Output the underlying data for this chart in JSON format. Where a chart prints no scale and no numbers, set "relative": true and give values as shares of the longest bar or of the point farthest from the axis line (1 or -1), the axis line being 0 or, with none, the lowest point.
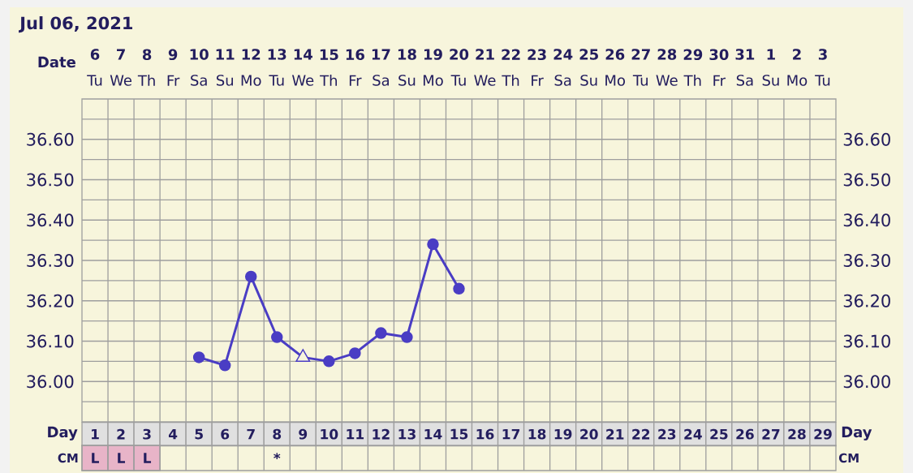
{
  "chart_data": [
    {
      "type": "line",
      "title": "Jul 06, 2021",
      "categories": [
        "1",
        "2",
        "3",
        "4",
        "5",
        "6",
        "7",
        "8",
        "9",
        "10",
        "11",
        "12",
        "13",
        "14",
        "15",
        "16",
        "17",
        "18",
        "19",
        "20",
        "21",
        "22",
        "23",
        "24",
        "25",
        "26",
        "27",
        "28",
        "29"
      ],
      "xlabel": "Day",
      "x2label": "Date",
      "x2lim": [
        "2021-07-05T12:00",
        "2021-08-03T12:00"
      ],
      "x2ticks": [
        {
          "value": "2021-07-06",
          "label": "**6** Tu"
        },
        {
          "value": "2021-07-07",
          "label": "**7** We"
        },
        {
          "value": "2021-07-08",
          "label": "**8** Th"
        },
        {
          "value": "2021-07-09",
          "label": "**9** Fr"
        },
        {
          "value": "2021-07-10",
          "label": "**10** Sa"
        },
        {
          "value": "2021-07-11",
          "label": "**11** Su"
        },
        {
          "value": "2021-07-12",
          "label": "**12** Mo"
        },
        {
          "value": "2021-07-13",
          "label": "**13** Tu"
        },
        {
          "value": "2021-07-14",
          "label": "**14** We"
        },
        {
          "value": "2021-07-15",
          "label": "**15** Th"
        },
        {
          "value": "2021-07-16",
          "label": "**16** Fr"
        },
        {
          "value": "2021-07-17",
          "label": "**17** Sa"
        },
        {
          "value": "2021-07-18",
          "label": "**18** Su"
        },
        {
          "value": "2021-07-19",
          "label": "**19** Mo"
        },
        {
          "value": "2021-07-20",
          "label": "**20** Tu"
        },
        {
          "value": "2021-07-21",
          "label": "**21** We"
        },
        {
          "value": "2021-07-22",
          "label": "**22** Th"
        },
        {
          "value": "2021-07-23",
          "label": "**23** Fr"
        },
        {
          "value": "2021-07-24",
          "label": "**24** Sa"
        },
        {
          "value": "2021-07-25",
          "label": "**25** Su"
        },
        {
          "value": "2021-07-26",
          "label": "**26** Mo"
        },
        {
          "value": "2021-07-27",
          "label": "**27** Tu"
        },
        {
          "value": "2021-07-28",
          "label": "**28** We"
        },
        {
          "value": "2021-07-29",
          "label": "**29** Th"
        },
        {
          "value": "2021-07-30",
          "label": "**30** Fr"
        },
        {
          "value": "2021-07-31",
          "label": "**31** Sa"
        },
        {
          "value": "2021-08-01",
          "label": "**1** Su"
        },
        {
          "value": "2021-08-02",
          "label": "**2** Mo"
        },
        {
          "value": "2021-08-03",
          "label": "**3** Tu"
        }
      ],
      "ylim": [
        35.9,
        36.7
      ],
      "yticks": [
        {
          "value": 35.95,
          "label": null
        },
        {
          "value": 36,
          "label": "36.00"
        },
        {
          "value": 36.05,
          "label": null
        },
        {
          "value": 36.1,
          "label": "36.10"
        },
        {
          "value": 36.15,
          "label": null
        },
        {
          "value": 36.2,
          "label": "36.20"
        },
        {
          "value": 36.25,
          "label": null
        },
        {
          "value": 36.3,
          "label": "36.30"
        },
        {
          "value": 36.35,
          "label": null
        },
        {
          "value": 36.4,
          "label": "36.40"
        },
        {
          "value": 36.45,
          "label": null
        },
        {
          "value": 36.5,
          "label": "36.50"
        },
        {
          "value": 36.55,
          "label": null
        },
        {
          "value": 36.6,
          "label": "36.60"
        },
        {
          "value": 36.65,
          "label": null
        }
      ],
      "y2lim": [
        35.9,
        36.7
      ],
      "y2ticks": [
        {
          "value": 36,
          "label": "36.00"
        },
        {
          "value": 36.1,
          "label": "36.10"
        },
        {
          "value": 36.2,
          "label": "36.20"
        },
        {
          "value": 36.3,
          "label": "36.30"
        },
        {
          "value": 36.4,
          "label": "36.40"
        },
        {
          "value": 36.5,
          "label": "36.50"
        },
        {
          "value": 36.6,
          "label": "36.60"
        }
      ],
      "grid": true,
      "series": [
        {
          "type": "line",
          "marker": "none",
          "color": "#4a3dc4",
          "values": [
            null,
            null,
            null,
            null,
            36.06,
            36.04,
            36.26,
            36.11,
            36.06,
            36.05,
            36.07,
            36.12,
            36.11,
            36.34,
            36.23,
            null,
            null,
            null,
            null,
            null,
            null,
            null,
            null,
            null,
            null,
            null,
            null,
            null,
            null
          ]
        },
        {
          "type": "scatter",
          "marker": "circle",
          "color": "#4a3dc4",
          "values": [
            null,
            null,
            null,
            null,
            36.06,
            36.04,
            36.26,
            36.11,
            null,
            36.05,
            36.07,
            36.12,
            36.11,
            36.34,
            36.23,
            null,
            null,
            null,
            null,
            null,
            null,
            null,
            null,
            null,
            null,
            null,
            null,
            null,
            null
          ]
        },
        {
          "type": "scatter",
          "marker": "triangle",
          "color": "#4a3dc4",
          "values": [
            null,
            null,
            null,
            null,
            null,
            null,
            null,
            null,
            36.06,
            null,
            null,
            null,
            null,
            null,
            null,
            null,
            null,
            null,
            null,
            null,
            null,
            null,
            null,
            null,
            null,
            null,
            null,
            null,
            null
          ]
        }
      ]
    },
    {
      "type": "bar",
      "relative": true,
      "categories": [
        "L",
        "L",
        "L",
        null,
        null,
        null,
        null,
        "*",
        null,
        null,
        null,
        null,
        null,
        null,
        null,
        null,
        null,
        null,
        null,
        null,
        null,
        null,
        null,
        null,
        null,
        null,
        null,
        null,
        null
      ],
      "ylabel": "CM",
      "y2label": "CM",
      "color": "#e8b4c8",
      "grid": "x",
      "values": [
        1,
        1,
        1,
        null,
        null,
        null,
        null,
        null,
        null,
        null,
        null,
        null,
        null,
        null,
        null,
        null,
        null,
        null,
        null,
        null,
        null,
        null,
        null,
        null,
        null,
        null,
        null,
        null,
        null
      ]
    }
  ]
}
